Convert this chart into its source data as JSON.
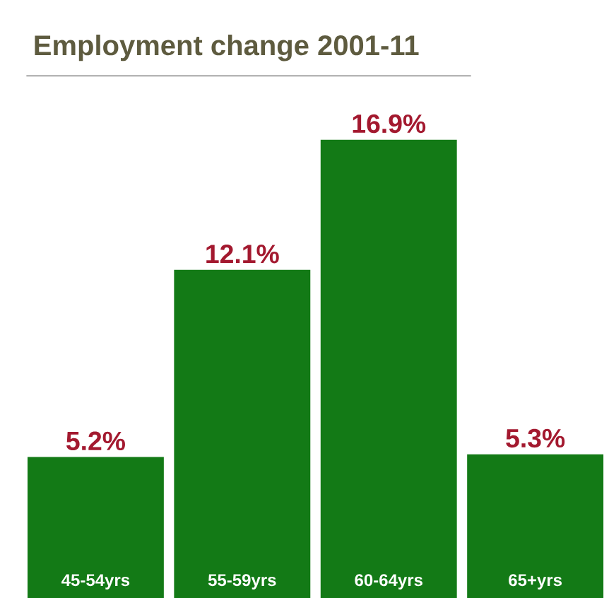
{
  "chart_data": {
    "type": "bar",
    "title": "Employment change 2001-11",
    "categories": [
      "45-54yrs",
      "55-59yrs",
      "60-64yrs",
      "65+yrs"
    ],
    "values": [
      5.2,
      12.1,
      16.9,
      5.3
    ],
    "value_labels": [
      "5.2%",
      "12.1%",
      "16.9%",
      "5.3%"
    ],
    "color": "#137a16"
  }
}
